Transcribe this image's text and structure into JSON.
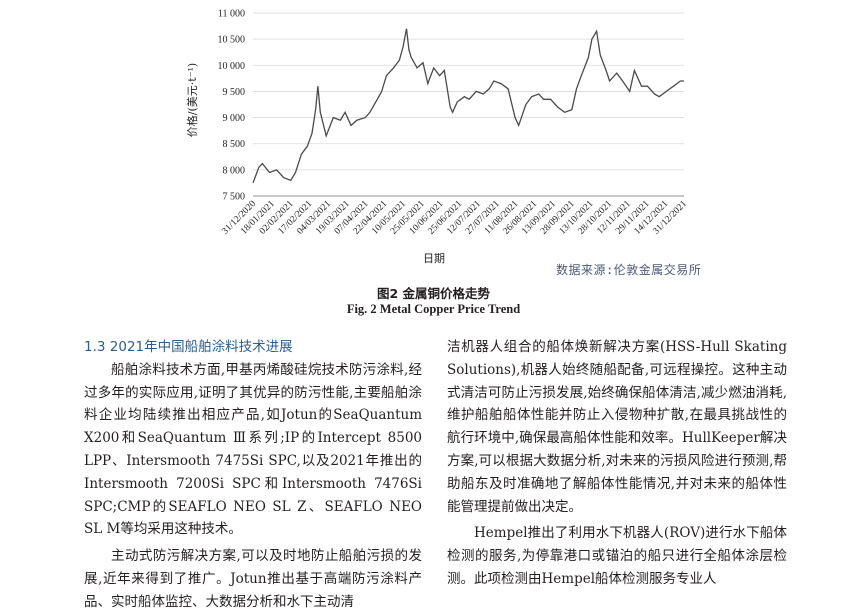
{
  "chart_data": {
    "type": "line",
    "ylabel": "价格/(美元·t⁻¹)",
    "xlabel": "日期",
    "ylim": [
      7500,
      11000
    ],
    "y_ticks": [
      "7 500",
      "8 000",
      "8 500",
      "9 000",
      "9 500",
      "10 000",
      "10 500",
      "11 000"
    ],
    "x_tick_labels": [
      "31/12/2020",
      "18/01/2021",
      "02/02/2021",
      "17/02/2021",
      "04/03/2021",
      "19/03/2021",
      "07/04/2021",
      "22/04/2021",
      "10/05/2021",
      "25/05/2021",
      "10/06/2021",
      "25/06/2021",
      "12/07/2021",
      "27/07/2021",
      "11/08/2021",
      "26/08/2021",
      "13/09/2021",
      "28/09/2021",
      "13/10/2021",
      "28/10/2021",
      "12/11/2021",
      "29/11/2021",
      "14/12/2021",
      "31/12/2021"
    ],
    "series": [
      {
        "x": [
          "2020-12-31",
          "2021-01-05",
          "2021-01-08",
          "2021-01-14",
          "2021-01-20",
          "2021-01-26",
          "2021-02-01",
          "2021-02-05",
          "2021-02-10",
          "2021-02-15",
          "2021-02-19",
          "2021-02-22",
          "2021-02-24",
          "2021-02-26",
          "2021-03-03",
          "2021-03-09",
          "2021-03-15",
          "2021-03-19",
          "2021-03-24",
          "2021-03-29",
          "2021-04-05",
          "2021-04-09",
          "2021-04-14",
          "2021-04-19",
          "2021-04-23",
          "2021-04-29",
          "2021-05-04",
          "2021-05-07",
          "2021-05-10",
          "2021-05-12",
          "2021-05-14",
          "2021-05-19",
          "2021-05-24",
          "2021-05-28",
          "2021-06-02",
          "2021-06-07",
          "2021-06-11",
          "2021-06-16",
          "2021-06-18",
          "2021-06-22",
          "2021-06-28",
          "2021-07-02",
          "2021-07-08",
          "2021-07-14",
          "2021-07-19",
          "2021-07-23",
          "2021-07-29",
          "2021-08-04",
          "2021-08-10",
          "2021-08-13",
          "2021-08-19",
          "2021-08-24",
          "2021-08-30",
          "2021-09-03",
          "2021-09-09",
          "2021-09-15",
          "2021-09-21",
          "2021-09-27",
          "2021-10-01",
          "2021-10-05",
          "2021-10-11",
          "2021-10-14",
          "2021-10-18",
          "2021-10-21",
          "2021-10-26",
          "2021-10-29",
          "2021-11-04",
          "2021-11-09",
          "2021-11-15",
          "2021-11-19",
          "2021-11-25",
          "2021-11-30",
          "2021-12-06",
          "2021-12-10",
          "2021-12-16",
          "2021-12-22",
          "2021-12-28",
          "2021-12-31"
        ],
        "y": [
          7750,
          8050,
          8120,
          7950,
          8000,
          7850,
          7800,
          7950,
          8300,
          8450,
          8700,
          9150,
          9600,
          9100,
          8650,
          9000,
          8950,
          9100,
          8850,
          8950,
          9000,
          9100,
          9300,
          9500,
          9800,
          9950,
          10100,
          10350,
          10700,
          10300,
          10150,
          9950,
          10050,
          9650,
          9950,
          9800,
          9900,
          9200,
          9100,
          9300,
          9400,
          9350,
          9500,
          9450,
          9550,
          9700,
          9650,
          9550,
          9000,
          8850,
          9250,
          9400,
          9450,
          9350,
          9350,
          9200,
          9100,
          9150,
          9550,
          9800,
          10150,
          10500,
          10650,
          10200,
          9900,
          9700,
          9850,
          9700,
          9500,
          9900,
          9600,
          9600,
          9450,
          9400,
          9500,
          9600,
          9700,
          9700
        ]
      }
    ]
  },
  "source_note": "数据来源:伦敦金属交易所",
  "caption_cn": "图2   金属铜价格走势",
  "caption_en": "Fig. 2    Metal Copper Price Trend",
  "left_col": {
    "heading": "1.3   2021年中国船舶涂料技术进展",
    "para1": "船舶涂料技术方面,甲基丙烯酸硅烷技术防污涂料,经过多年的实际应用,证明了其优异的防污性能,主要船舶涂料企业均陆续推出相应产品,如Jotun的SeaQuantum X200和SeaQuantum Ⅲ系列;IP的Intercept 8500 LPP、Intersmooth 7475Si SPC,以及2021年推出的Intersmooth 7200Si SPC和Intersmooth 7476Si SPC;CMP的SEAFLO NEO SL Z、SEAFLO NEO SL M等均采用这种技术。",
    "para2": "主动式防污解决方案,可以及时地防止船舶污损的发展,近年来得到了推广。Jotun推出基于高端防污涂料产品、实时船体监控、大数据分析和水下主动清"
  },
  "right_col": {
    "para1": "洁机器人组合的船体焕新解决方案(HSS-Hull Skating Solutions),机器人始终随船配备,可远程操控。这种主动式清洁可防止污损发展,始终确保船体清洁,减少燃油消耗,维护船舶船体性能并防止入侵物种扩散,在最具挑战性的航行环境中,确保最高船体性能和效率。HullKeeper解决方案,可以根据大数据分析,对未来的污损风险进行预测,帮助船东及时准确地了解船体性能情况,并对未来的船体性能管理提前做出决定。",
    "para2": "Hempel推出了利用水下机器人(ROV)进行水下船体检测的服务,为停靠港口或锚泊的船只进行全船体涂层检测。此项检测由Hempel船体检测服务专业人"
  }
}
